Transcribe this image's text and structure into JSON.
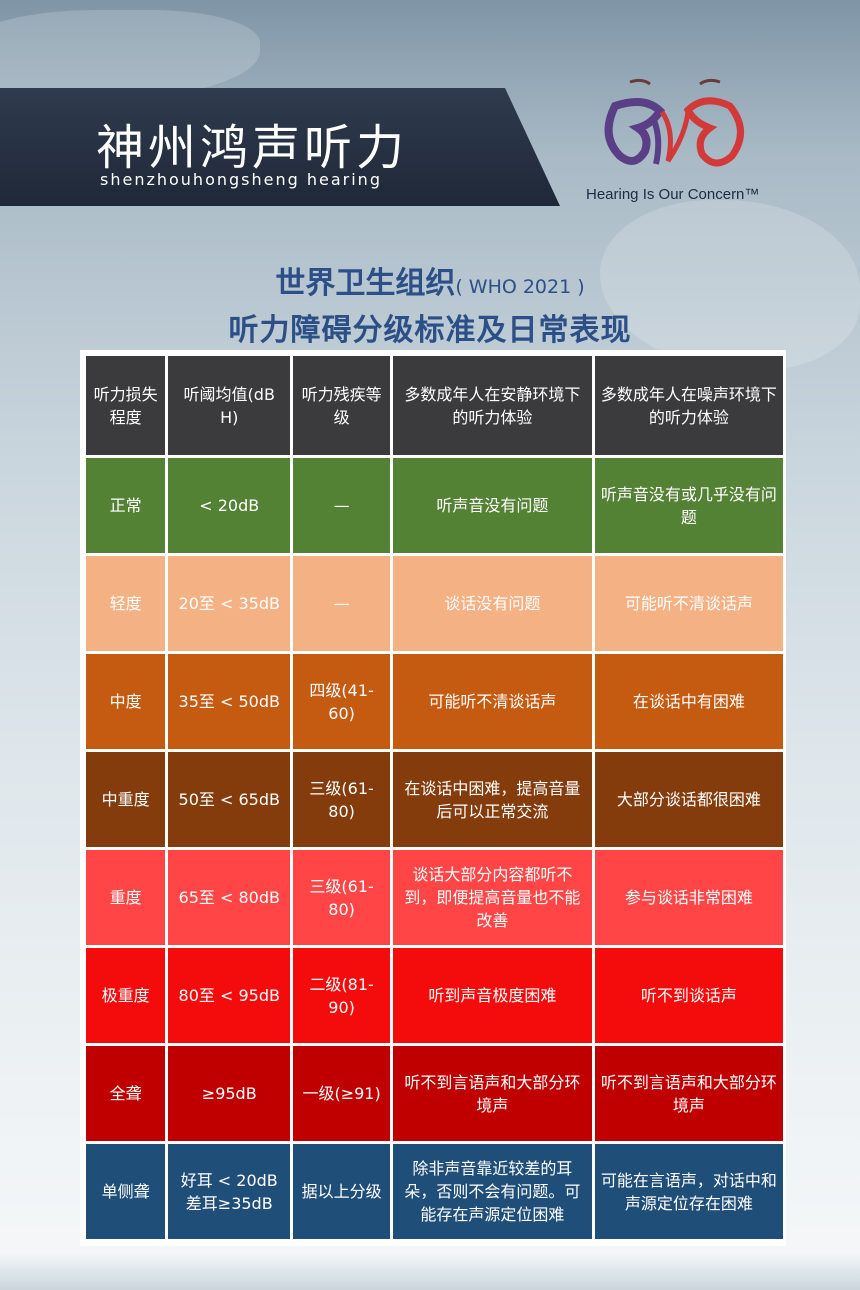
{
  "brand": {
    "title": "神州鸿声听力",
    "subtitle": "shenzhouhongsheng hearing",
    "tagline": "Hearing Is Our Concern™",
    "colors": {
      "banner": "#2f3b4e",
      "logo_purple": "#5a3e86",
      "logo_red": "#d23a3a",
      "heading": "#2d4f88"
    }
  },
  "heading": {
    "line1": "世界卫生组织",
    "line1_tag": "( WHO 2021 )",
    "line2": "听力障碍分级标准及日常表现"
  },
  "table": {
    "headers": [
      "听力损失程度",
      "听阈均值(dB H)",
      "听力残疾等级",
      "多数成年人在安静环境下的听力体验",
      "多数成年人在噪声环境下的听力体验"
    ],
    "rows": [
      {
        "color": "#548235",
        "cells": [
          "正常",
          "< 20dB",
          "—",
          "听声音没有问题",
          "听声音没有或几乎没有问 题"
        ]
      },
      {
        "color": "#f4b183",
        "cells": [
          "轻度",
          "20至 < 35dB",
          "—",
          "谈话没有问题",
          "可能听不清谈话声"
        ]
      },
      {
        "color": "#c55a11",
        "cells": [
          "中度",
          "35至 < 50dB",
          "四级(41-60)",
          "可能听不清谈话声",
          "在谈话中有困难"
        ]
      },
      {
        "color": "#843c0c",
        "cells": [
          "中重度",
          "50至 < 65dB",
          "三级(61-80)",
          "在谈话中困难，提高音量后可以正常交流",
          "大部分谈话都很困难"
        ]
      },
      {
        "color": "#ff4545",
        "cells": [
          "重度",
          "65至 < 80dB",
          "三级(61-80)",
          "谈话大部分内容都听不到，即便提高音量也不能改善",
          "参与谈话非常困难"
        ]
      },
      {
        "color": "#f40c0c",
        "cells": [
          "极重度",
          "80至 < 95dB",
          "二级(81-90)",
          "听到声音极度困难",
          "听不到谈话声"
        ]
      },
      {
        "color": "#c00000",
        "cells": [
          "全聋",
          "≥95dB",
          "一级(≥91)",
          "听不到言语声和大部分环境声",
          "听不到言语声和大部分环 境声"
        ]
      },
      {
        "color": "#1f4e79",
        "cells": [
          "单侧聋",
          "好耳 < 20dB 差耳≥35dB",
          "据以上分级",
          "除非声音靠近较差的耳朵，否则不会有问题。可能存在声源定位困难",
          "可能在言语声，对话中和声源定位存在困难"
        ]
      }
    ]
  }
}
